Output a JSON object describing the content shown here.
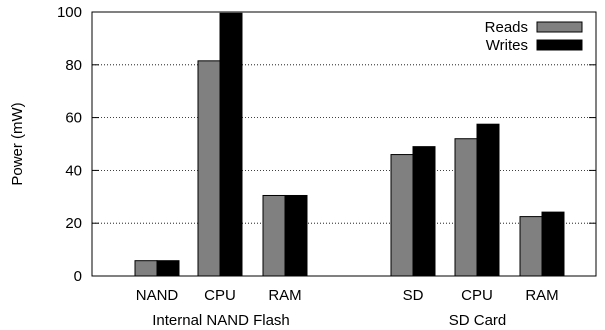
{
  "chart_data": {
    "type": "bar",
    "title": "",
    "ylabel": "Power (mW)",
    "ylim": [
      0,
      100
    ],
    "yticks": [
      0,
      20,
      40,
      60,
      80,
      100
    ],
    "grid": "horizontal dotted",
    "legend_position": "top-right",
    "groups": [
      {
        "label": "Internal NAND Flash",
        "categories": [
          "NAND",
          "CPU",
          "RAM"
        ]
      },
      {
        "label": "SD Card",
        "categories": [
          "SD",
          "CPU",
          "RAM"
        ]
      }
    ],
    "series": [
      {
        "name": "Reads",
        "color": "#808080",
        "values": [
          5.8,
          81.5,
          30.5,
          46,
          52,
          22.5
        ]
      },
      {
        "name": "Writes",
        "color": "#000000",
        "values": [
          5.8,
          99.5,
          30.5,
          49,
          57.5,
          24.2
        ]
      }
    ]
  }
}
